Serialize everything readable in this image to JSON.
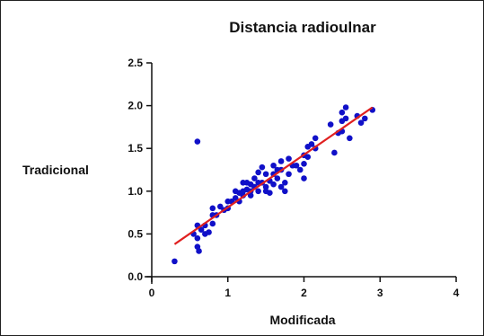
{
  "chart_data": {
    "type": "scatter",
    "title": "Distancia radioulnar",
    "xlabel": "Modificada",
    "ylabel": "Tradicional",
    "xlim": [
      0,
      4
    ],
    "ylim": [
      0,
      2.5
    ],
    "x_ticks": [
      0,
      1,
      2,
      3,
      4
    ],
    "y_ticks": [
      0.0,
      0.5,
      1.0,
      1.5,
      2.0,
      2.5
    ],
    "x_tick_labels": [
      "0",
      "1",
      "2",
      "3",
      "4"
    ],
    "y_tick_labels": [
      "0.0",
      "0.5",
      "1.0",
      "1.5",
      "2.0",
      "2.5"
    ],
    "grid": false,
    "point_color": "#1010c8",
    "line_color": "#e02020",
    "series": [
      {
        "points": [
          [
            0.3,
            0.18
          ],
          [
            0.6,
            1.58
          ],
          [
            0.55,
            0.5
          ],
          [
            0.6,
            0.6
          ],
          [
            0.6,
            0.45
          ],
          [
            0.6,
            0.35
          ],
          [
            0.62,
            0.3
          ],
          [
            0.65,
            0.55
          ],
          [
            0.7,
            0.5
          ],
          [
            0.7,
            0.6
          ],
          [
            0.75,
            0.52
          ],
          [
            0.8,
            0.62
          ],
          [
            0.8,
            0.72
          ],
          [
            0.8,
            0.8
          ],
          [
            0.85,
            0.72
          ],
          [
            0.9,
            0.82
          ],
          [
            0.95,
            0.78
          ],
          [
            1.0,
            0.8
          ],
          [
            1.0,
            0.88
          ],
          [
            1.05,
            0.88
          ],
          [
            1.1,
            1.0
          ],
          [
            1.1,
            0.92
          ],
          [
            1.15,
            0.98
          ],
          [
            1.15,
            0.88
          ],
          [
            1.2,
            1.0
          ],
          [
            1.2,
            1.1
          ],
          [
            1.2,
            0.95
          ],
          [
            1.25,
            1.02
          ],
          [
            1.25,
            1.1
          ],
          [
            1.3,
            1.08
          ],
          [
            1.3,
            1.0
          ],
          [
            1.3,
            0.95
          ],
          [
            1.35,
            1.05
          ],
          [
            1.35,
            1.15
          ],
          [
            1.4,
            1.1
          ],
          [
            1.4,
            1.22
          ],
          [
            1.4,
            1.0
          ],
          [
            1.45,
            1.28
          ],
          [
            1.45,
            1.1
          ],
          [
            1.5,
            1.05
          ],
          [
            1.5,
            1.0
          ],
          [
            1.5,
            1.2
          ],
          [
            1.55,
            1.12
          ],
          [
            1.55,
            0.98
          ],
          [
            1.6,
            1.2
          ],
          [
            1.6,
            1.08
          ],
          [
            1.6,
            1.3
          ],
          [
            1.65,
            1.25
          ],
          [
            1.65,
            1.15
          ],
          [
            1.7,
            1.35
          ],
          [
            1.7,
            1.05
          ],
          [
            1.7,
            1.25
          ],
          [
            1.75,
            1.1
          ],
          [
            1.75,
            1.0
          ],
          [
            1.8,
            1.2
          ],
          [
            1.8,
            1.38
          ],
          [
            1.85,
            1.3
          ],
          [
            1.9,
            1.3
          ],
          [
            1.95,
            1.25
          ],
          [
            2.0,
            1.42
          ],
          [
            2.0,
            1.32
          ],
          [
            2.0,
            1.15
          ],
          [
            2.05,
            1.52
          ],
          [
            2.05,
            1.4
          ],
          [
            2.1,
            1.55
          ],
          [
            2.15,
            1.62
          ],
          [
            2.15,
            1.5
          ],
          [
            2.35,
            1.78
          ],
          [
            2.4,
            1.45
          ],
          [
            2.45,
            1.68
          ],
          [
            2.5,
            1.92
          ],
          [
            2.5,
            1.82
          ],
          [
            2.5,
            1.7
          ],
          [
            2.55,
            1.98
          ],
          [
            2.55,
            1.85
          ],
          [
            2.6,
            1.62
          ],
          [
            2.7,
            1.88
          ],
          [
            2.75,
            1.8
          ],
          [
            2.8,
            1.85
          ],
          [
            2.9,
            1.95
          ]
        ]
      }
    ],
    "regression_line": {
      "x": [
        0.3,
        2.9
      ],
      "y": [
        0.38,
        1.98
      ]
    }
  }
}
